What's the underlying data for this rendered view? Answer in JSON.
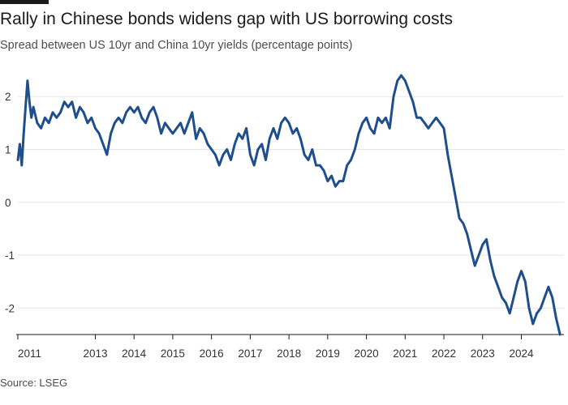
{
  "header": {
    "title": "Rally in Chinese bonds widens gap with US borrowing costs",
    "subtitle": "Spread between US 10yr and China 10yr yields (percentage points)"
  },
  "footer": {
    "source": "Source: LSEG"
  },
  "colors": {
    "line": "#1f4e8c",
    "grid": "#e6e6e6",
    "axis": "#1a1a1a"
  },
  "chart_data": {
    "type": "line",
    "title": "Rally in Chinese bonds widens gap with US borrowing costs",
    "subtitle": "Spread between US 10yr and China 10yr yields (percentage points)",
    "xlabel": "",
    "ylabel": "",
    "xlim": [
      2011.0,
      2025.1
    ],
    "ylim": [
      -2.5,
      2.6
    ],
    "y_ticks": [
      -2,
      -1,
      0,
      1,
      2
    ],
    "y_tick_labels": [
      "-2",
      "-1",
      "0",
      "1",
      "2"
    ],
    "x_ticks": [
      2011,
      2013,
      2014,
      2015,
      2016,
      2017,
      2018,
      2019,
      2020,
      2021,
      2022,
      2023,
      2024
    ],
    "x_tick_labels": [
      "2011",
      "2013",
      "2014",
      "2015",
      "2016",
      "2017",
      "2018",
      "2019",
      "2020",
      "2021",
      "2022",
      "2023",
      "2024"
    ],
    "grid": "horizontal",
    "legend": "none",
    "series": [
      {
        "x": [
          2011.0,
          2011.05,
          2011.1,
          2011.15,
          2011.2,
          2011.25,
          2011.3,
          2011.35,
          2011.4,
          2011.5,
          2011.6,
          2011.7,
          2011.8,
          2011.9,
          2012.0,
          2012.1,
          2012.2,
          2012.3,
          2012.4,
          2012.5,
          2012.6,
          2012.7,
          2012.8,
          2012.9,
          2013.0,
          2013.1,
          2013.2,
          2013.3,
          2013.4,
          2013.5,
          2013.6,
          2013.7,
          2013.8,
          2013.9,
          2014.0,
          2014.1,
          2014.2,
          2014.3,
          2014.4,
          2014.5,
          2014.6,
          2014.7,
          2014.8,
          2014.9,
          2015.0,
          2015.1,
          2015.2,
          2015.3,
          2015.4,
          2015.5,
          2015.6,
          2015.7,
          2015.8,
          2015.9,
          2016.0,
          2016.1,
          2016.2,
          2016.3,
          2016.4,
          2016.5,
          2016.6,
          2016.7,
          2016.8,
          2016.9,
          2017.0,
          2017.1,
          2017.2,
          2017.3,
          2017.4,
          2017.5,
          2017.6,
          2017.7,
          2017.8,
          2017.9,
          2018.0,
          2018.1,
          2018.2,
          2018.3,
          2018.4,
          2018.5,
          2018.6,
          2018.7,
          2018.8,
          2018.9,
          2019.0,
          2019.1,
          2019.2,
          2019.3,
          2019.4,
          2019.5,
          2019.6,
          2019.7,
          2019.8,
          2019.9,
          2020.0,
          2020.1,
          2020.2,
          2020.3,
          2020.4,
          2020.5,
          2020.6,
          2020.7,
          2020.8,
          2020.9,
          2021.0,
          2021.1,
          2021.2,
          2021.3,
          2021.4,
          2021.5,
          2021.6,
          2021.7,
          2021.8,
          2021.9,
          2022.0,
          2022.1,
          2022.2,
          2022.3,
          2022.4,
          2022.5,
          2022.6,
          2022.7,
          2022.8,
          2022.9,
          2023.0,
          2023.1,
          2023.2,
          2023.3,
          2023.4,
          2023.5,
          2023.6,
          2023.7,
          2023.8,
          2023.9,
          2024.0,
          2024.1,
          2024.2,
          2024.3,
          2024.4,
          2024.5,
          2024.6,
          2024.7,
          2024.8,
          2024.9,
          2025.0
        ],
        "values": [
          0.8,
          1.1,
          0.7,
          1.3,
          1.8,
          2.3,
          1.9,
          1.6,
          1.8,
          1.5,
          1.4,
          1.6,
          1.5,
          1.7,
          1.6,
          1.7,
          1.9,
          1.8,
          1.9,
          1.6,
          1.8,
          1.7,
          1.5,
          1.6,
          1.4,
          1.3,
          1.1,
          0.9,
          1.3,
          1.5,
          1.6,
          1.5,
          1.7,
          1.8,
          1.7,
          1.8,
          1.6,
          1.5,
          1.7,
          1.8,
          1.6,
          1.3,
          1.5,
          1.4,
          1.3,
          1.4,
          1.5,
          1.3,
          1.5,
          1.7,
          1.2,
          1.4,
          1.3,
          1.1,
          1.0,
          0.9,
          0.7,
          0.9,
          1.0,
          0.8,
          1.1,
          1.3,
          1.2,
          1.4,
          0.9,
          0.7,
          1.0,
          1.1,
          0.8,
          1.2,
          1.4,
          1.2,
          1.5,
          1.6,
          1.5,
          1.3,
          1.4,
          1.2,
          0.9,
          0.8,
          1.0,
          0.7,
          0.7,
          0.6,
          0.4,
          0.5,
          0.3,
          0.4,
          0.4,
          0.7,
          0.8,
          1.0,
          1.3,
          1.5,
          1.6,
          1.4,
          1.3,
          1.6,
          1.5,
          1.6,
          1.4,
          2.0,
          2.3,
          2.4,
          2.3,
          2.1,
          1.9,
          1.6,
          1.6,
          1.5,
          1.4,
          1.5,
          1.6,
          1.5,
          1.4,
          0.9,
          0.5,
          0.1,
          -0.3,
          -0.4,
          -0.6,
          -0.9,
          -1.2,
          -1.0,
          -0.8,
          -0.7,
          -1.1,
          -1.4,
          -1.6,
          -1.8,
          -1.9,
          -2.1,
          -1.8,
          -1.5,
          -1.3,
          -1.5,
          -2.0,
          -2.3,
          -2.1,
          -2.0,
          -1.8,
          -1.6,
          -1.8,
          -2.2,
          -2.5
        ]
      }
    ]
  }
}
